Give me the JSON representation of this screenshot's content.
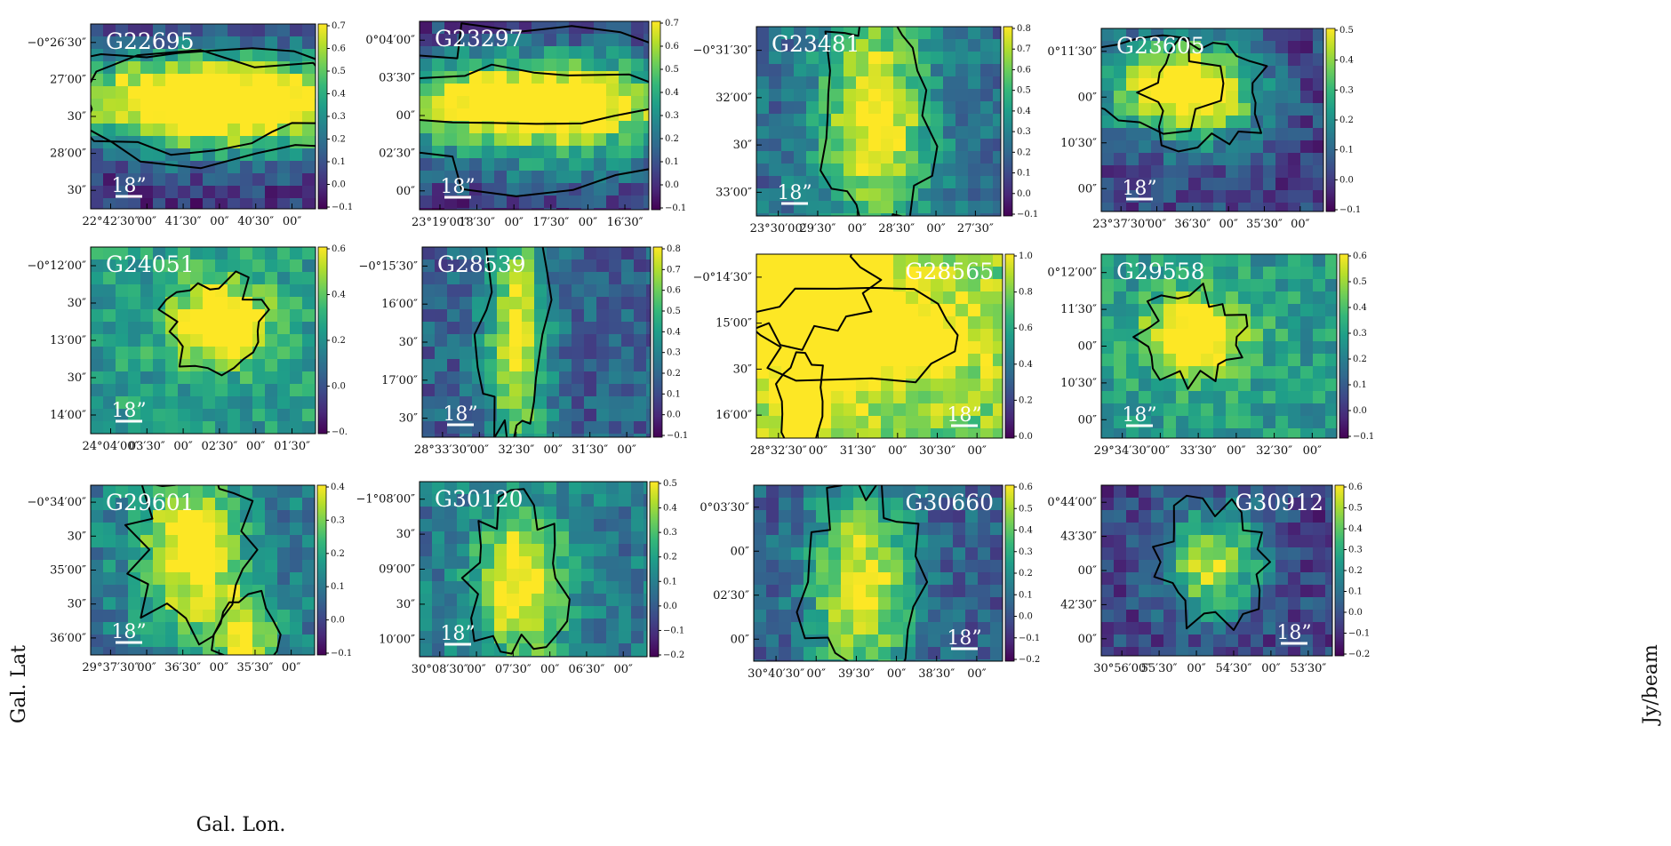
{
  "figure": {
    "xlabel": "Gal. Lon.",
    "ylabel": "Gal. Lat",
    "cbar_label": "Jy/beam",
    "scale_bar_label": "18”"
  },
  "colormap": [
    "#440154",
    "#482878",
    "#3e4989",
    "#31688e",
    "#26828e",
    "#1f9e89",
    "#35b779",
    "#6ece58",
    "#b5de2b",
    "#fde725"
  ],
  "chart_data": [
    {
      "type": "heatmap",
      "name": "G22695",
      "xticks": [
        "22°42′30″",
        "00″",
        "41′30″",
        "00″",
        "40′30″",
        "00″"
      ],
      "yticks": [
        "−0°26′30″",
        "27′00″",
        "30″",
        "28′00″",
        "30″"
      ],
      "cbar_ticks": [
        "0.7",
        "0.6",
        "0.5",
        "0.4",
        "0.3",
        "0.2",
        "0.1",
        "0.0",
        "−0.1"
      ],
      "vmin": -0.1,
      "vmax": 0.7
    },
    {
      "type": "heatmap",
      "name": "G23297",
      "xticks": [
        "23°19′00″",
        "18′30″",
        "00″",
        "17′30″",
        "00″",
        "16′30″"
      ],
      "yticks": [
        "0°04′00″",
        "03′30″",
        "00″",
        "02′30″",
        "00″"
      ],
      "cbar_ticks": [
        "0.7",
        "0.6",
        "0.5",
        "0.4",
        "0.3",
        "0.2",
        "0.1",
        "0.0",
        "−0.1"
      ],
      "vmin": -0.1,
      "vmax": 0.7
    },
    {
      "type": "heatmap",
      "name": "G23481",
      "xticks": [
        "23°30′00″",
        "29′30″",
        "00″",
        "28′30″",
        "00″",
        "27′30″"
      ],
      "yticks": [
        "−0°31′30″",
        "32′00″",
        "30″",
        "33′00″"
      ],
      "cbar_ticks": [
        "0.8",
        "0.7",
        "0.6",
        "0.5",
        "0.4",
        "0.3",
        "0.2",
        "0.1",
        "0.0",
        "−0.1"
      ],
      "vmin": -0.1,
      "vmax": 0.8
    },
    {
      "type": "heatmap",
      "name": "G23605",
      "xticks": [
        "23°37′30″",
        "00″",
        "36′30″",
        "00″",
        "35′30″",
        "00″"
      ],
      "yticks": [
        "0°11′30″",
        "00″",
        "10′30″",
        "00″"
      ],
      "cbar_ticks": [
        "0.5",
        "0.4",
        "0.3",
        "0.2",
        "0.1",
        "0.0",
        "−0.1"
      ],
      "vmin": -0.1,
      "vmax": 0.5
    },
    {
      "type": "heatmap",
      "name": "G24051",
      "xticks": [
        "24°04′00″",
        "03′30″",
        "00″",
        "02′30″",
        "00″",
        "01′30″"
      ],
      "yticks": [
        "−0°12′00″",
        "30″",
        "13′00″",
        "30″",
        "14′00″"
      ],
      "cbar_ticks": [
        "0.6",
        "0.4",
        "0.2",
        "0.0",
        "−0."
      ],
      "vmin": -0.1,
      "vmax": 0.65
    },
    {
      "type": "heatmap",
      "name": "G28539",
      "xticks": [
        "28°33′30″",
        "00″",
        "32′30″",
        "00″",
        "31′30″",
        "00″"
      ],
      "yticks": [
        "−0°15′30″",
        "16′00″",
        "30″",
        "17′00″",
        "30″"
      ],
      "cbar_ticks": [
        "0.8",
        "0.7",
        "0.6",
        "0.5",
        "0.4",
        "0.3",
        "0.2",
        "0.1",
        "0.0",
        "−0.1"
      ],
      "vmin": -0.1,
      "vmax": 0.8
    },
    {
      "type": "heatmap",
      "name": "G28565",
      "xticks": [
        "28°32′30″",
        "00″",
        "31′30″",
        "00″",
        "30′30″",
        "00″"
      ],
      "yticks": [
        "−0°14′30″",
        "15′00″",
        "30″",
        "16′00″"
      ],
      "cbar_ticks": [
        "1.0",
        "0.8",
        "0.6",
        "0.4",
        "0.2",
        "0.0"
      ],
      "vmin": -0.05,
      "vmax": 1.0
    },
    {
      "type": "heatmap",
      "name": "G29558",
      "xticks": [
        "29°34′30″",
        "00″",
        "33′30″",
        "00″",
        "32′30″",
        "00″"
      ],
      "yticks": [
        "0°12′00″",
        "11′30″",
        "00″",
        "10′30″",
        "00″"
      ],
      "cbar_ticks": [
        "0.6",
        "0.5",
        "0.4",
        "0.3",
        "0.2",
        "0.1",
        "0.0",
        "−0.1"
      ],
      "vmin": -0.1,
      "vmax": 0.6
    },
    {
      "type": "heatmap",
      "name": "G29601",
      "xticks": [
        "29°37′30″",
        "00″",
        "36′30″",
        "00″",
        "35′30″",
        "00″"
      ],
      "yticks": [
        "−0°34′00″",
        "30″",
        "35′00″",
        "30″",
        "36′00″"
      ],
      "cbar_ticks": [
        "0.4",
        "0.3",
        "0.2",
        "0.1",
        "0.0",
        "−0.1"
      ],
      "vmin": -0.1,
      "vmax": 0.4
    },
    {
      "type": "heatmap",
      "name": "G30120",
      "xticks": [
        "30°08′30″",
        "00″",
        "07′30″",
        "00″",
        "06′30″",
        "00″"
      ],
      "yticks": [
        "−1°08′00″",
        "30″",
        "09′00″",
        "30″",
        "10′00″"
      ],
      "cbar_ticks": [
        "0.5",
        "0.4",
        "0.3",
        "0.2",
        "0.1",
        "0.0",
        "−0.1",
        "−0.2"
      ],
      "vmin": -0.2,
      "vmax": 0.5
    },
    {
      "type": "heatmap",
      "name": "G30660",
      "xticks": [
        "30°40′30″",
        "00″",
        "39′30″",
        "00″",
        "38′30″",
        "00″"
      ],
      "yticks": [
        "0°03′30″",
        "00″",
        "02′30″",
        "00″"
      ],
      "cbar_ticks": [
        "0.6",
        "0.5",
        "0.4",
        "0.3",
        "0.2",
        "0.1",
        "0.0",
        "−0.1",
        "−0.2"
      ],
      "vmin": -0.2,
      "vmax": 0.65
    },
    {
      "type": "heatmap",
      "name": "G30912",
      "xticks": [
        "30°56′00″",
        "55′30″",
        "00″",
        "54′30″",
        "00″",
        "53′30″"
      ],
      "yticks": [
        "0°44′00″",
        "43′30″",
        "00″",
        "42′30″",
        "00″"
      ],
      "cbar_ticks": [
        "0.6",
        "0.5",
        "0.4",
        "0.3",
        "0.2",
        "0.1",
        "0.0",
        "−0.1",
        "−0.2"
      ],
      "vmin": -0.2,
      "vmax": 0.65
    }
  ]
}
